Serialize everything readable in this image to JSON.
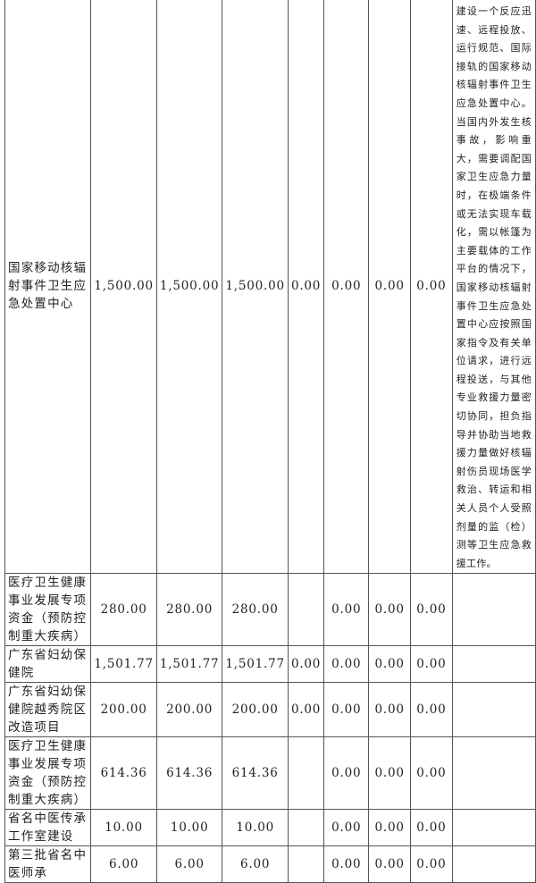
{
  "rows": [
    {
      "name": "国家移动核辐射事件卫生应急处置中心",
      "c1": "1,500.00",
      "c2": "1,500.00",
      "c3": "1,500.00",
      "c4": "0.00",
      "c5": "0.00",
      "c6": "0.00",
      "c7": "0.00",
      "desc": "建设一个反应迅速、远程投放、运行规范、国际接轨的国家移动核辐射事件卫生应急处置中心。当国内外发生核事故，影响重大，需要调配国家卫生应急力量时，在极端条件或无法实现车载化，需以帐篷为主要载体的工作平台的情况下，国家移动核辐射事件卫生应急处置中心应按照国家指令及有关单位请求，进行远程投送，与其他专业救援力量密切协同，担负指导并协助当地救援力量做好核辐射伤员现场医学救治、转运和相关人员个人受照剂量的监（检）测等卫生应急救援工作。"
    },
    {
      "name": "医疗卫生健康事业发展专项资金（预防控制重大疾病）",
      "c1": "280.00",
      "c2": "280.00",
      "c3": "280.00",
      "c4": "",
      "c5": "0.00",
      "c6": "0.00",
      "c7": "0.00",
      "desc": ""
    },
    {
      "name": "广东省妇幼保健院",
      "c1": "1,501.77",
      "c2": "1,501.77",
      "c3": "1,501.77",
      "c4": "0.00",
      "c5": "0.00",
      "c6": "0.00",
      "c7": "0.00",
      "desc": ""
    },
    {
      "name": "广东省妇幼保健院越秀院区改造项目",
      "c1": "200.00",
      "c2": "200.00",
      "c3": "200.00",
      "c4": "0.00",
      "c5": "0.00",
      "c6": "0.00",
      "c7": "0.00",
      "desc": ""
    },
    {
      "name": "医疗卫生健康事业发展专项资金（预防控制重大疾病）",
      "c1": "614.36",
      "c2": "614.36",
      "c3": "614.36",
      "c4": "",
      "c5": "0.00",
      "c6": "0.00",
      "c7": "0.00",
      "desc": ""
    },
    {
      "name": "省名中医传承工作室建设",
      "c1": "10.00",
      "c2": "10.00",
      "c3": "10.00",
      "c4": "",
      "c5": "0.00",
      "c6": "0.00",
      "c7": "0.00",
      "desc": ""
    },
    {
      "name": "第三批省名中医师承",
      "c1": "6.00",
      "c2": "6.00",
      "c3": "6.00",
      "c4": "",
      "c5": "0.00",
      "c6": "0.00",
      "c7": "0.00",
      "desc": ""
    }
  ]
}
